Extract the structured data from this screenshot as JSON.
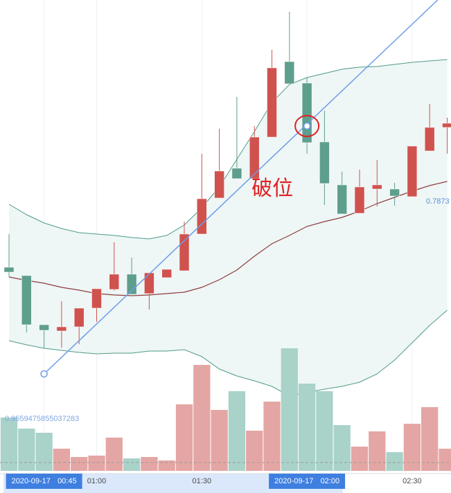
{
  "chart_data": {
    "type": "candlestick",
    "categories": [
      null,
      null,
      "00:45",
      null,
      null,
      "01:00",
      null,
      null,
      null,
      null,
      null,
      "01:30",
      null,
      null,
      null,
      null,
      null,
      "02:00",
      null,
      null,
      null,
      null,
      null,
      "02:30",
      null,
      null
    ],
    "date_labels": [
      {
        "index": 2,
        "date": "2020-09-17"
      },
      {
        "index": 17,
        "date": "2020-09-17"
      }
    ],
    "open": [
      0.7778,
      0.7766,
      0.7695,
      0.7686,
      0.7692,
      0.7719,
      0.7746,
      0.7768,
      0.774,
      0.7763,
      0.7773,
      0.7826,
      0.7878,
      0.7921,
      0.7906,
      0.7966,
      0.8075,
      0.8044,
      0.7959,
      0.7897,
      0.7856,
      0.7891,
      0.7891,
      0.788,
      0.7946,
      0.798
    ],
    "high": [
      0.7826,
      0.7766,
      0.7695,
      0.7729,
      0.7719,
      0.7747,
      0.7814,
      0.7792,
      0.777,
      0.7775,
      0.7844,
      0.7942,
      0.7978,
      0.8024,
      0.7982,
      0.8092,
      0.8147,
      0.8052,
      0.8004,
      0.7916,
      0.7919,
      0.7933,
      0.79,
      0.7953,
      0.8014,
      0.7994
    ],
    "low": [
      0.7764,
      0.7684,
      0.7661,
      0.7662,
      0.7667,
      0.7699,
      0.7744,
      0.7739,
      0.7717,
      0.7763,
      0.7773,
      0.7826,
      0.7878,
      0.7906,
      0.7906,
      0.7966,
      0.8043,
      0.7942,
      0.7868,
      0.7855,
      0.7856,
      0.7866,
      0.7867,
      0.788,
      0.7946,
      0.7942
    ],
    "close": [
      0.7771,
      0.7695,
      0.7687,
      0.7692,
      0.7719,
      0.7747,
      0.7768,
      0.7739,
      0.777,
      0.7775,
      0.7826,
      0.7877,
      0.7917,
      0.7906,
      0.7966,
      0.8066,
      0.8043,
      0.7958,
      0.7899,
      0.7855,
      0.7894,
      0.7897,
      0.7881,
      0.7953,
      0.798,
      0.7986
    ],
    "volume": [
      77,
      61,
      55,
      32,
      20,
      22,
      48,
      18,
      20,
      15,
      96,
      153,
      88,
      115,
      58,
      100,
      177,
      126,
      115,
      66,
      35,
      57,
      27,
      68,
      92,
      32
    ],
    "bollinger": {
      "upper": [
        0.7869,
        0.7854,
        0.7842,
        0.7834,
        0.7828,
        0.7826,
        0.7824,
        0.7821,
        0.7819,
        0.7824,
        0.7839,
        0.7864,
        0.7894,
        0.7934,
        0.7974,
        0.8016,
        0.8042,
        0.8052,
        0.8058,
        0.8064,
        0.8067,
        0.8068,
        0.8071,
        0.8074,
        0.8076,
        0.8078
      ],
      "middle": [
        0.7764,
        0.7759,
        0.7755,
        0.7749,
        0.7745,
        0.774,
        0.7738,
        0.7737,
        0.7738,
        0.774,
        0.7742,
        0.7749,
        0.776,
        0.7774,
        0.7794,
        0.7812,
        0.7824,
        0.7837,
        0.7844,
        0.785,
        0.7859,
        0.787,
        0.7879,
        0.7888,
        0.7896,
        0.7902
      ],
      "lower": [
        0.7672,
        0.7666,
        0.7661,
        0.7658,
        0.7655,
        0.7653,
        0.7654,
        0.7654,
        0.7657,
        0.7657,
        0.7659,
        0.7649,
        0.7631,
        0.7621,
        0.7614,
        0.7606,
        0.7592,
        0.7597,
        0.7602,
        0.7606,
        0.7612,
        0.7624,
        0.7644,
        0.7669,
        0.7694,
        0.7716
      ]
    },
    "trendline": {
      "start": [
        2,
        0.7624
      ],
      "end": [
        24,
        0.8153
      ]
    },
    "breakpoint": [
      17,
      0.7982
    ],
    "annotation": "破位",
    "price_label": 0.7873,
    "volume_label": "0.9559475855037283",
    "ylim": [
      0.7454,
      0.8164
    ],
    "vlim": [
      0,
      230
    ],
    "up_color": "#d0524e",
    "down_color": "#5e9e8d",
    "up_volume_color": "#e4a6a4",
    "down_volume_color": "#a9d2c9",
    "band_color": "#4f9a86",
    "middle_color": "#8e3b3b",
    "trend_color": "#6d9de6",
    "grid": true
  }
}
